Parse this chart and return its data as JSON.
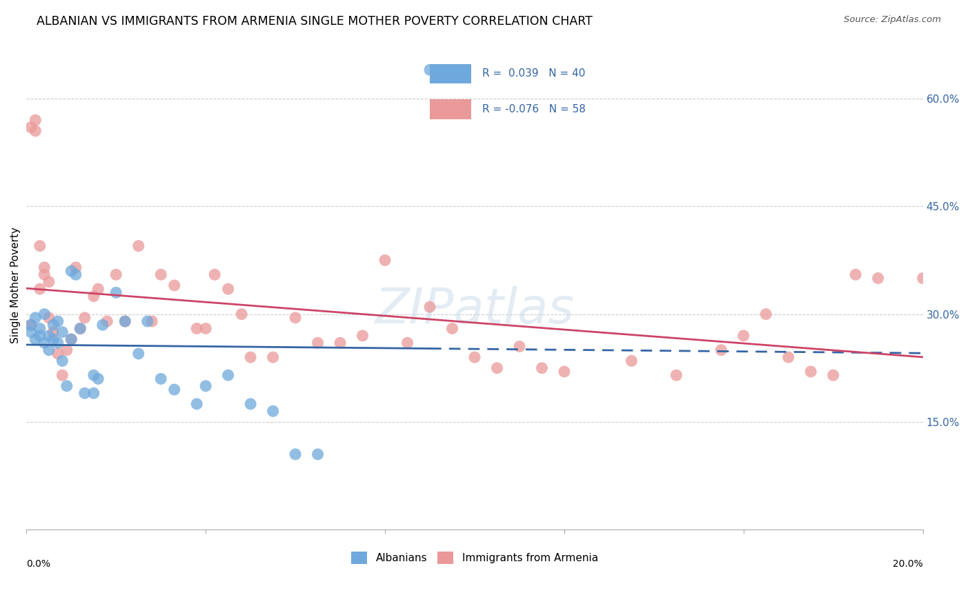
{
  "title": "ALBANIAN VS IMMIGRANTS FROM ARMENIA SINGLE MOTHER POVERTY CORRELATION CHART",
  "source": "Source: ZipAtlas.com",
  "ylabel": "Single Mother Poverty",
  "albanians_R": 0.039,
  "albanians_N": 40,
  "armenia_R": -0.076,
  "armenia_N": 58,
  "blue_color": "#6fa8dc",
  "pink_color": "#ea9999",
  "blue_line_color": "#3465a4",
  "pink_line_color": "#cc4466",
  "legend_text_color": "#3465a4",
  "watermark": "ZIPatlas",
  "xlim": [
    0.0,
    0.2
  ],
  "ylim": [
    0.0,
    0.68
  ],
  "y_tick_positions": [
    0.15,
    0.3,
    0.45,
    0.6
  ],
  "y_tick_labels": [
    "15.0%",
    "30.0%",
    "45.0%",
    "60.0%"
  ],
  "albanians_x": [
    0.001,
    0.001,
    0.002,
    0.002,
    0.003,
    0.003,
    0.004,
    0.004,
    0.005,
    0.005,
    0.006,
    0.006,
    0.007,
    0.007,
    0.008,
    0.008,
    0.009,
    0.01,
    0.01,
    0.011,
    0.012,
    0.013,
    0.015,
    0.015,
    0.016,
    0.017,
    0.02,
    0.022,
    0.025,
    0.027,
    0.03,
    0.033,
    0.038,
    0.04,
    0.045,
    0.05,
    0.055,
    0.06,
    0.065,
    0.09
  ],
  "albanians_y": [
    0.275,
    0.285,
    0.265,
    0.295,
    0.27,
    0.28,
    0.26,
    0.3,
    0.25,
    0.27,
    0.265,
    0.285,
    0.26,
    0.29,
    0.235,
    0.275,
    0.2,
    0.36,
    0.265,
    0.355,
    0.28,
    0.19,
    0.19,
    0.215,
    0.21,
    0.285,
    0.33,
    0.29,
    0.245,
    0.29,
    0.21,
    0.195,
    0.175,
    0.2,
    0.215,
    0.175,
    0.165,
    0.105,
    0.105,
    0.64
  ],
  "armenia_x": [
    0.001,
    0.001,
    0.002,
    0.002,
    0.003,
    0.003,
    0.004,
    0.004,
    0.005,
    0.005,
    0.006,
    0.007,
    0.008,
    0.009,
    0.01,
    0.011,
    0.012,
    0.013,
    0.015,
    0.016,
    0.018,
    0.02,
    0.022,
    0.025,
    0.028,
    0.03,
    0.033,
    0.038,
    0.04,
    0.042,
    0.045,
    0.048,
    0.05,
    0.055,
    0.06,
    0.065,
    0.07,
    0.075,
    0.08,
    0.085,
    0.09,
    0.095,
    0.1,
    0.105,
    0.11,
    0.115,
    0.12,
    0.135,
    0.145,
    0.155,
    0.16,
    0.165,
    0.17,
    0.175,
    0.18,
    0.185,
    0.19,
    0.2
  ],
  "armenia_y": [
    0.285,
    0.56,
    0.555,
    0.57,
    0.395,
    0.335,
    0.365,
    0.355,
    0.345,
    0.295,
    0.275,
    0.245,
    0.215,
    0.25,
    0.265,
    0.365,
    0.28,
    0.295,
    0.325,
    0.335,
    0.29,
    0.355,
    0.29,
    0.395,
    0.29,
    0.355,
    0.34,
    0.28,
    0.28,
    0.355,
    0.335,
    0.3,
    0.24,
    0.24,
    0.295,
    0.26,
    0.26,
    0.27,
    0.375,
    0.26,
    0.31,
    0.28,
    0.24,
    0.225,
    0.255,
    0.225,
    0.22,
    0.235,
    0.215,
    0.25,
    0.27,
    0.3,
    0.24,
    0.22,
    0.215,
    0.355,
    0.35,
    0.35
  ]
}
